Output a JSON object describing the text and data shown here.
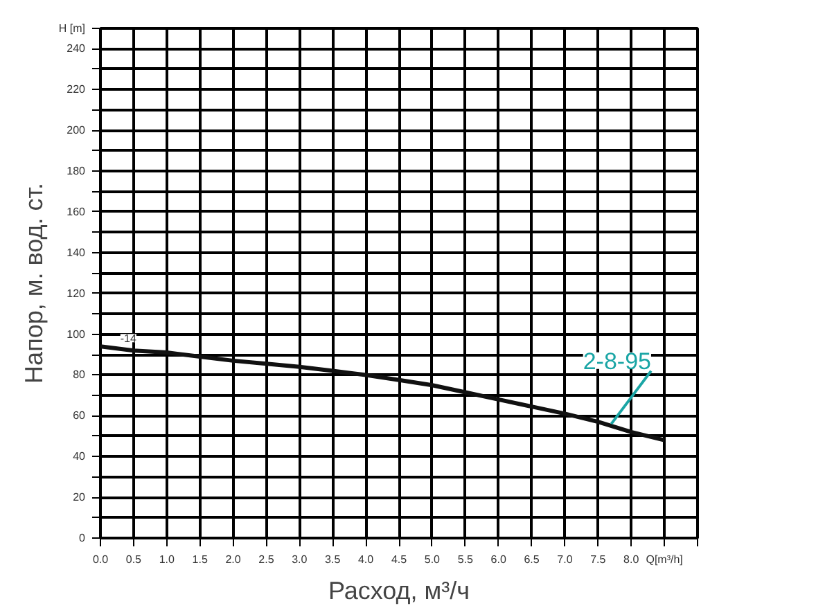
{
  "chart_data": {
    "type": "line",
    "xlabel": "Расход, м³/ч",
    "ylabel": "Напор, м. вод. ст.",
    "x": [
      0,
      0.5,
      1.0,
      1.5,
      2.0,
      2.5,
      3.0,
      3.5,
      4.0,
      4.5,
      5.0,
      5.5,
      6.0,
      6.5,
      7.0,
      7.5,
      8.0,
      8.5
    ],
    "series": [
      {
        "color": "#111111",
        "values": [
          94,
          92,
          91,
          89,
          87,
          85.5,
          84,
          82,
          80,
          77.5,
          75,
          71.5,
          68,
          64.5,
          61,
          57,
          52,
          48
        ]
      }
    ],
    "xlim": [
      0,
      9
    ],
    "ylim": [
      0,
      250
    ],
    "xticks": [
      {
        "value": 0,
        "label": "0.0"
      },
      {
        "value": 0.5,
        "label": "0.5"
      },
      {
        "value": 1,
        "label": "1.0"
      },
      {
        "value": 1.5,
        "label": "1.5"
      },
      {
        "value": 2,
        "label": "2.0"
      },
      {
        "value": 2.5,
        "label": "2.5"
      },
      {
        "value": 3,
        "label": "3.0"
      },
      {
        "value": 3.5,
        "label": "3.5"
      },
      {
        "value": 4,
        "label": "4.0"
      },
      {
        "value": 4.5,
        "label": "4.5"
      },
      {
        "value": 5,
        "label": "5.0"
      },
      {
        "value": 5.5,
        "label": "5.5"
      },
      {
        "value": 6,
        "label": "6.0"
      },
      {
        "value": 6.5,
        "label": "6.5"
      },
      {
        "value": 7,
        "label": "7.0"
      },
      {
        "value": 7.5,
        "label": "7.5"
      },
      {
        "value": 8,
        "label": "8.0"
      },
      {
        "value": 8.5,
        "label": "Q[m³/h]"
      },
      {
        "value": 9,
        "label": null
      }
    ],
    "yticks": [
      0,
      {
        "value": 10,
        "label": null
      },
      20,
      {
        "value": 30,
        "label": null
      },
      40,
      {
        "value": 50,
        "label": null
      },
      60,
      {
        "value": 70,
        "label": null
      },
      80,
      {
        "value": 90,
        "label": null
      },
      100,
      {
        "value": 110,
        "label": null
      },
      120,
      {
        "value": 130,
        "label": null
      },
      140,
      {
        "value": 150,
        "label": null
      },
      160,
      {
        "value": 170,
        "label": null
      },
      180,
      {
        "value": 190,
        "label": null
      },
      200,
      {
        "value": 210,
        "label": null
      },
      220,
      {
        "value": 230,
        "label": null
      },
      240,
      {
        "value": 250,
        "label": "H [m]"
      }
    ],
    "grid": true,
    "annotations": [
      {
        "text": "2-8-95",
        "x": 7.7,
        "y": 56
      },
      {
        "text": "-14",
        "x": 0.3,
        "y": 94
      }
    ]
  }
}
